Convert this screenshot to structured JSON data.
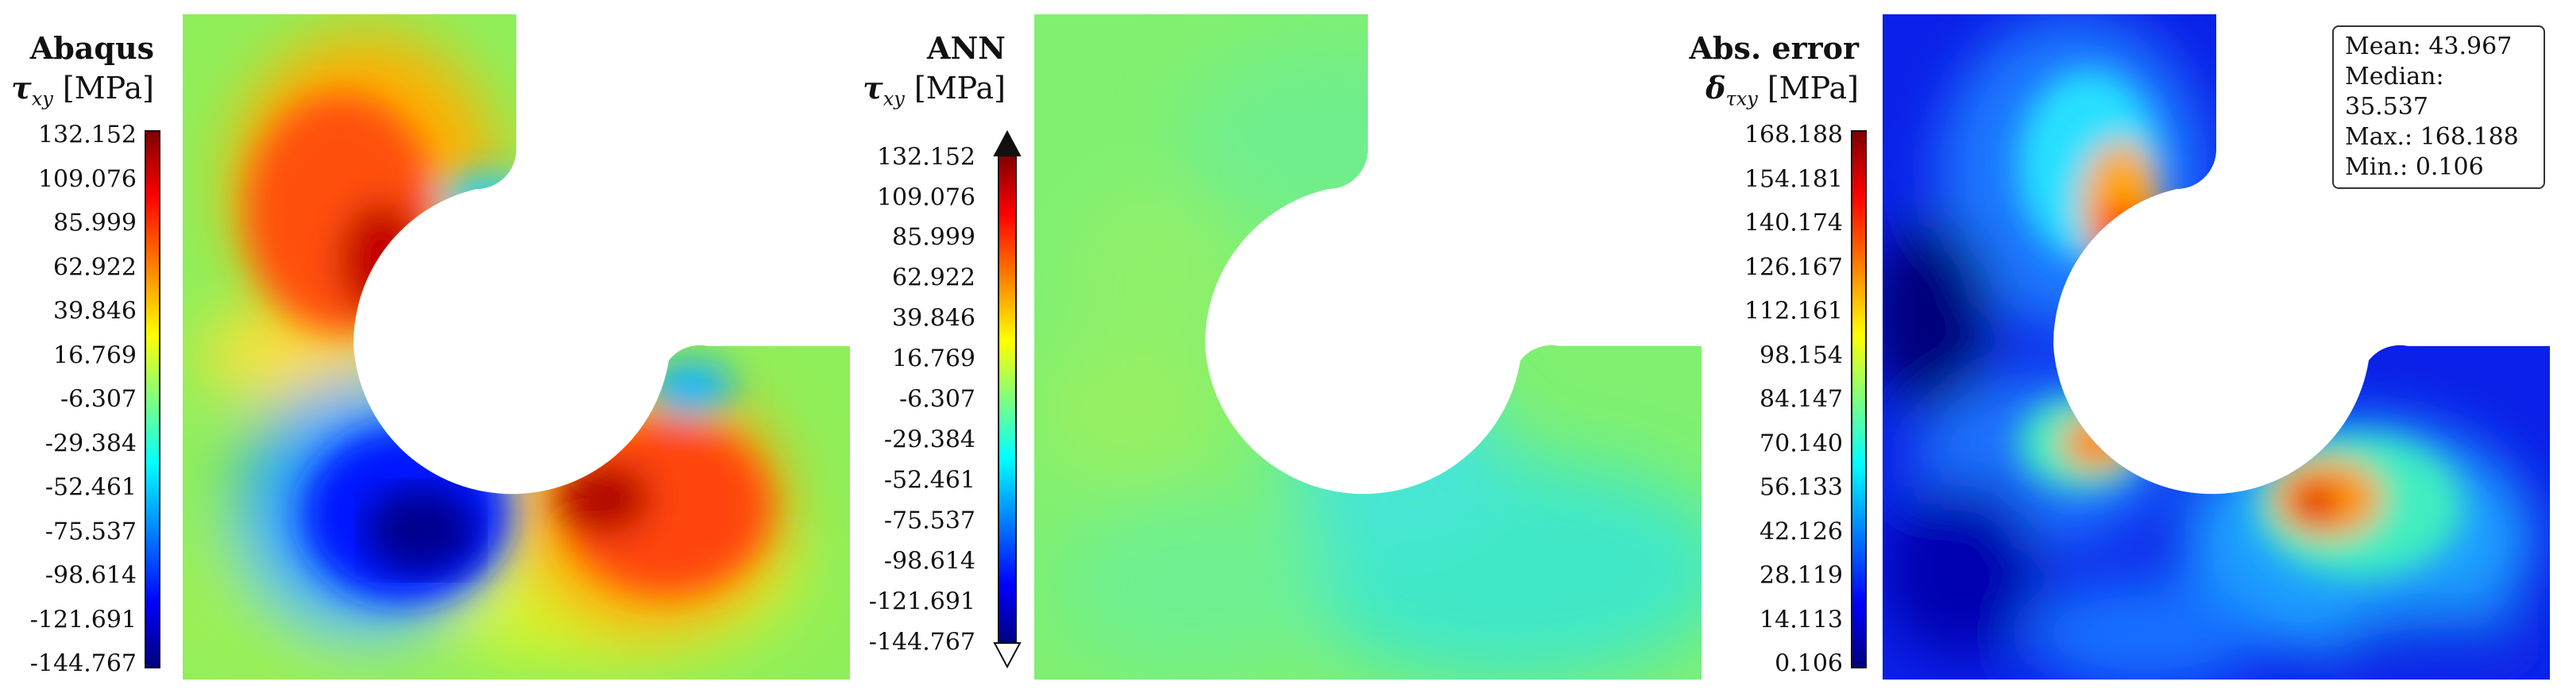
{
  "panels": [
    {
      "id": "abaqus",
      "title": "Abaqus",
      "symbol": "τ",
      "subscript": "xy",
      "unit": "[MPa]",
      "colormap": "jet",
      "ticks": [
        "132.152",
        "109.076",
        "85.999",
        "62.922",
        "39.846",
        "16.769",
        "-6.307",
        "-29.384",
        "-52.461",
        "-75.537",
        "-98.614",
        "-121.691",
        "-144.767"
      ]
    },
    {
      "id": "ann",
      "title": "ANN",
      "symbol": "τ",
      "subscript": "xy",
      "unit": "[MPa]",
      "colormap": "jet",
      "ticks": [
        "132.152",
        "109.076",
        "85.999",
        "62.922",
        "39.846",
        "16.769",
        "-6.307",
        "-29.384",
        "-52.461",
        "-75.537",
        "-98.614",
        "-121.691",
        "-144.767"
      ]
    },
    {
      "id": "error",
      "title": "Abs. error",
      "symbol": "δ",
      "subscript": "τxy",
      "unit": "[MPa]",
      "colormap": "jet",
      "ticks": [
        "168.188",
        "154.181",
        "140.174",
        "126.167",
        "112.161",
        "98.154",
        "84.147",
        "70.140",
        "56.133",
        "42.126",
        "28.119",
        "14.113",
        "0.106"
      ]
    }
  ],
  "stats": {
    "mean": "Mean: 43.967",
    "median": "Median: 35.537",
    "max": "Max.: 168.188",
    "min": "Min.: 0.106"
  },
  "colors": {
    "jet": [
      "#00007f",
      "#0000ff",
      "#007fff",
      "#00ffff",
      "#7fff7f",
      "#ffff00",
      "#ff7f00",
      "#ff0000",
      "#7f0000"
    ]
  }
}
